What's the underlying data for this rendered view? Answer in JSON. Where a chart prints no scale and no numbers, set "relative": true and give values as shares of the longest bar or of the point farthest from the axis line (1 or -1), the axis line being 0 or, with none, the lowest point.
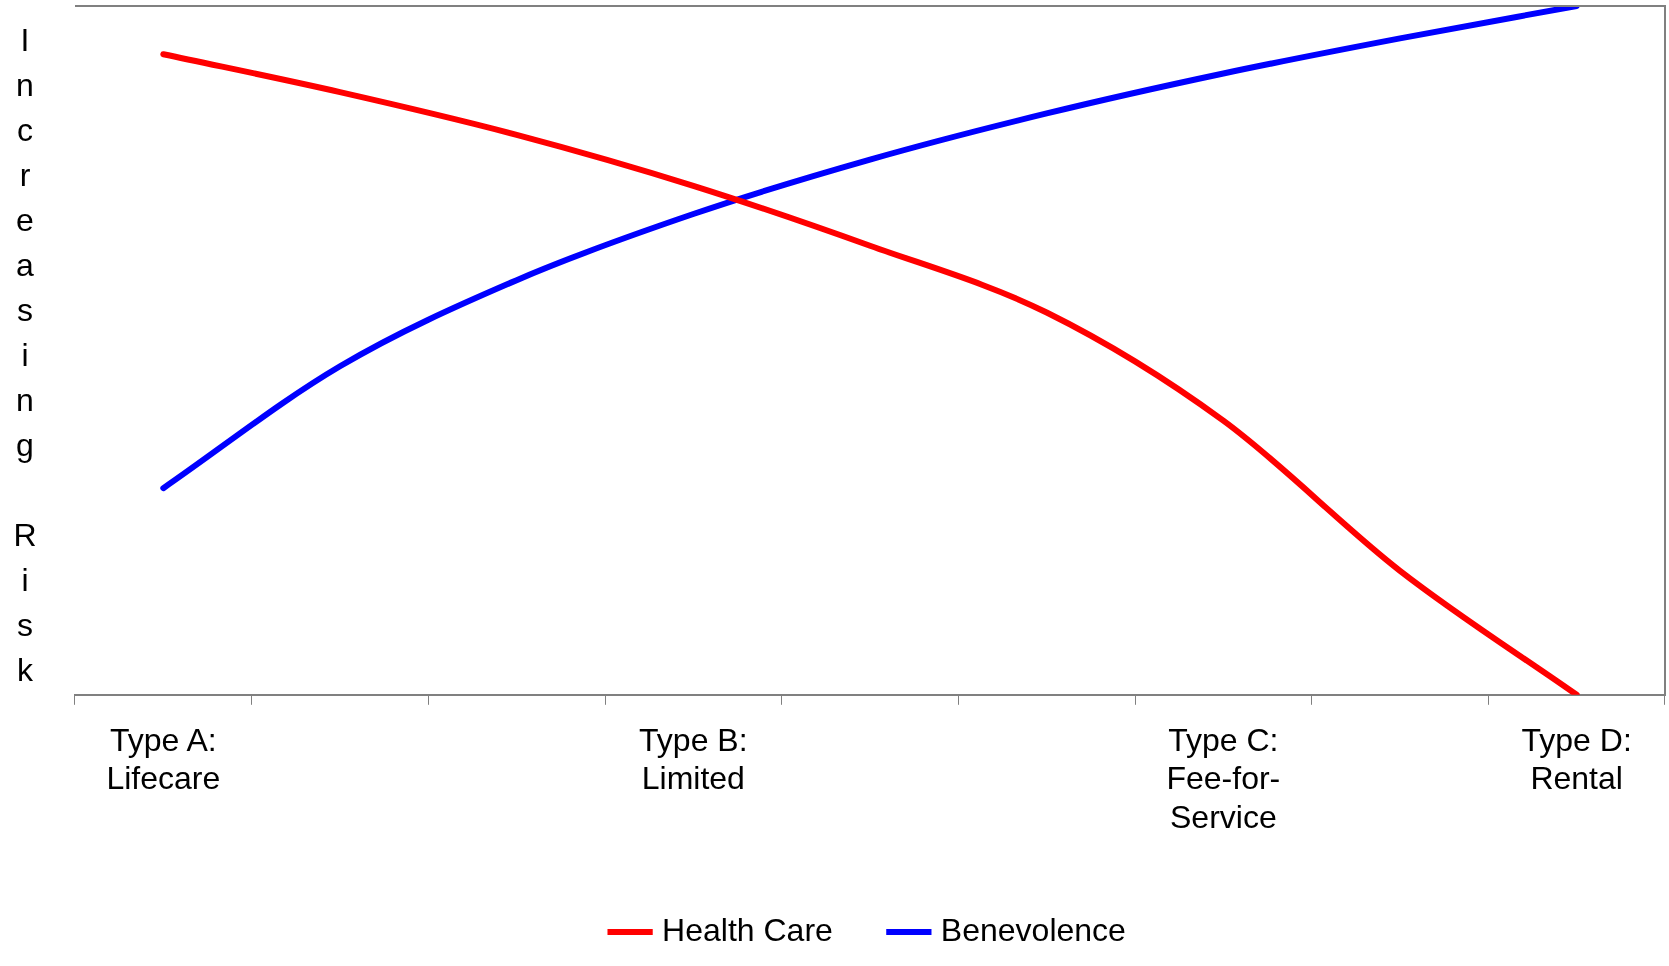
{
  "chart_data": {
    "type": "line",
    "ylabel": "Increasing Risk",
    "relative": true,
    "legend": "bottom",
    "marker": "none",
    "grid": false,
    "categories": [
      "Type A: Lifecare",
      null,
      null,
      "Type B: Limited",
      null,
      null,
      "Type C: Fee-for-Service",
      null,
      "Type D: Rental"
    ],
    "series": [
      {
        "name": "Health Care",
        "color": "#ff0000",
        "values": [
          0.93,
          0.875,
          0.813,
          0.739,
          0.652,
          0.555,
          0.398,
          0.18,
          0
        ]
      },
      {
        "name": "Benevolence",
        "color": "#0000ff",
        "values": [
          0.3,
          0.477,
          0.602,
          0.698,
          0.777,
          0.844,
          0.902,
          0.953,
          1
        ]
      }
    ]
  }
}
